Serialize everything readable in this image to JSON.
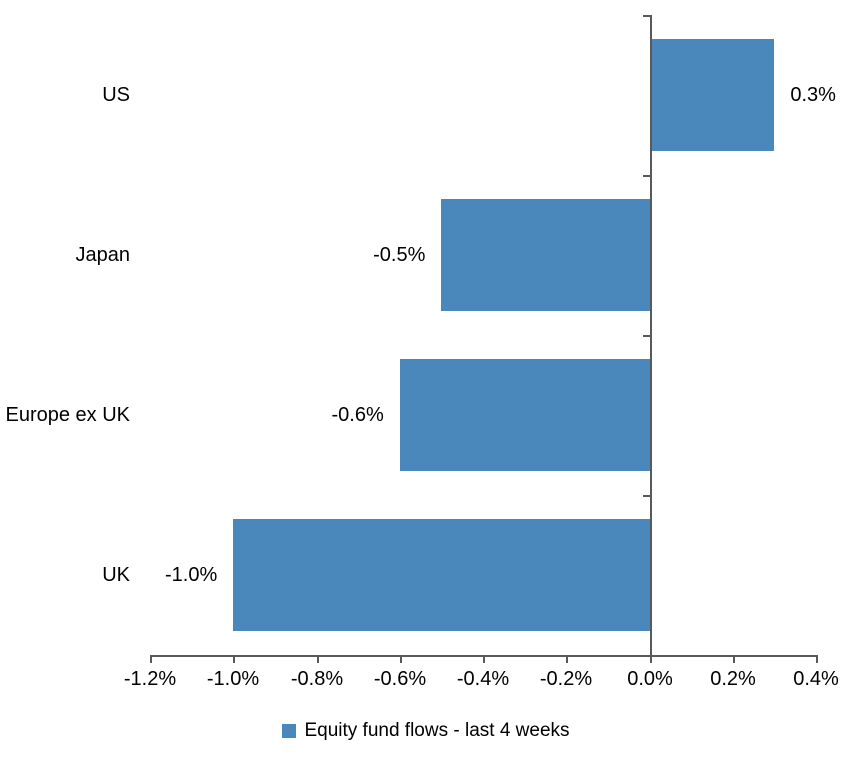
{
  "chart_data": {
    "type": "bar",
    "orientation": "horizontal",
    "title": "",
    "xlabel": "",
    "ylabel": "",
    "categories": [
      "US",
      "Japan",
      "Europe ex UK",
      "UK"
    ],
    "series": [
      {
        "name": "Equity fund flows - last 4 weeks",
        "values": [
          0.3,
          -0.5,
          -0.6,
          -1.0
        ],
        "value_labels": [
          "0.3%",
          "-0.5%",
          "-0.6%",
          "-1.0%"
        ]
      }
    ],
    "xlim": [
      -1.2,
      0.4
    ],
    "x_ticks": [
      -1.2,
      -1.0,
      -0.8,
      -0.6,
      -0.4,
      -0.2,
      0.0,
      0.2,
      0.4
    ],
    "x_tick_labels": [
      "-1.2%",
      "-1.0%",
      "-0.8%",
      "-0.6%",
      "-0.4%",
      "-0.2%",
      "0.0%",
      "0.2%",
      "0.4%"
    ],
    "grid": false,
    "legend_position": "bottom",
    "bar_color": "#4A87BA",
    "axis_color": "#595959",
    "text_color": "#000000"
  },
  "legend": {
    "label": "Equity fund flows - last 4 weeks",
    "marker_color": "#4A87BA"
  }
}
